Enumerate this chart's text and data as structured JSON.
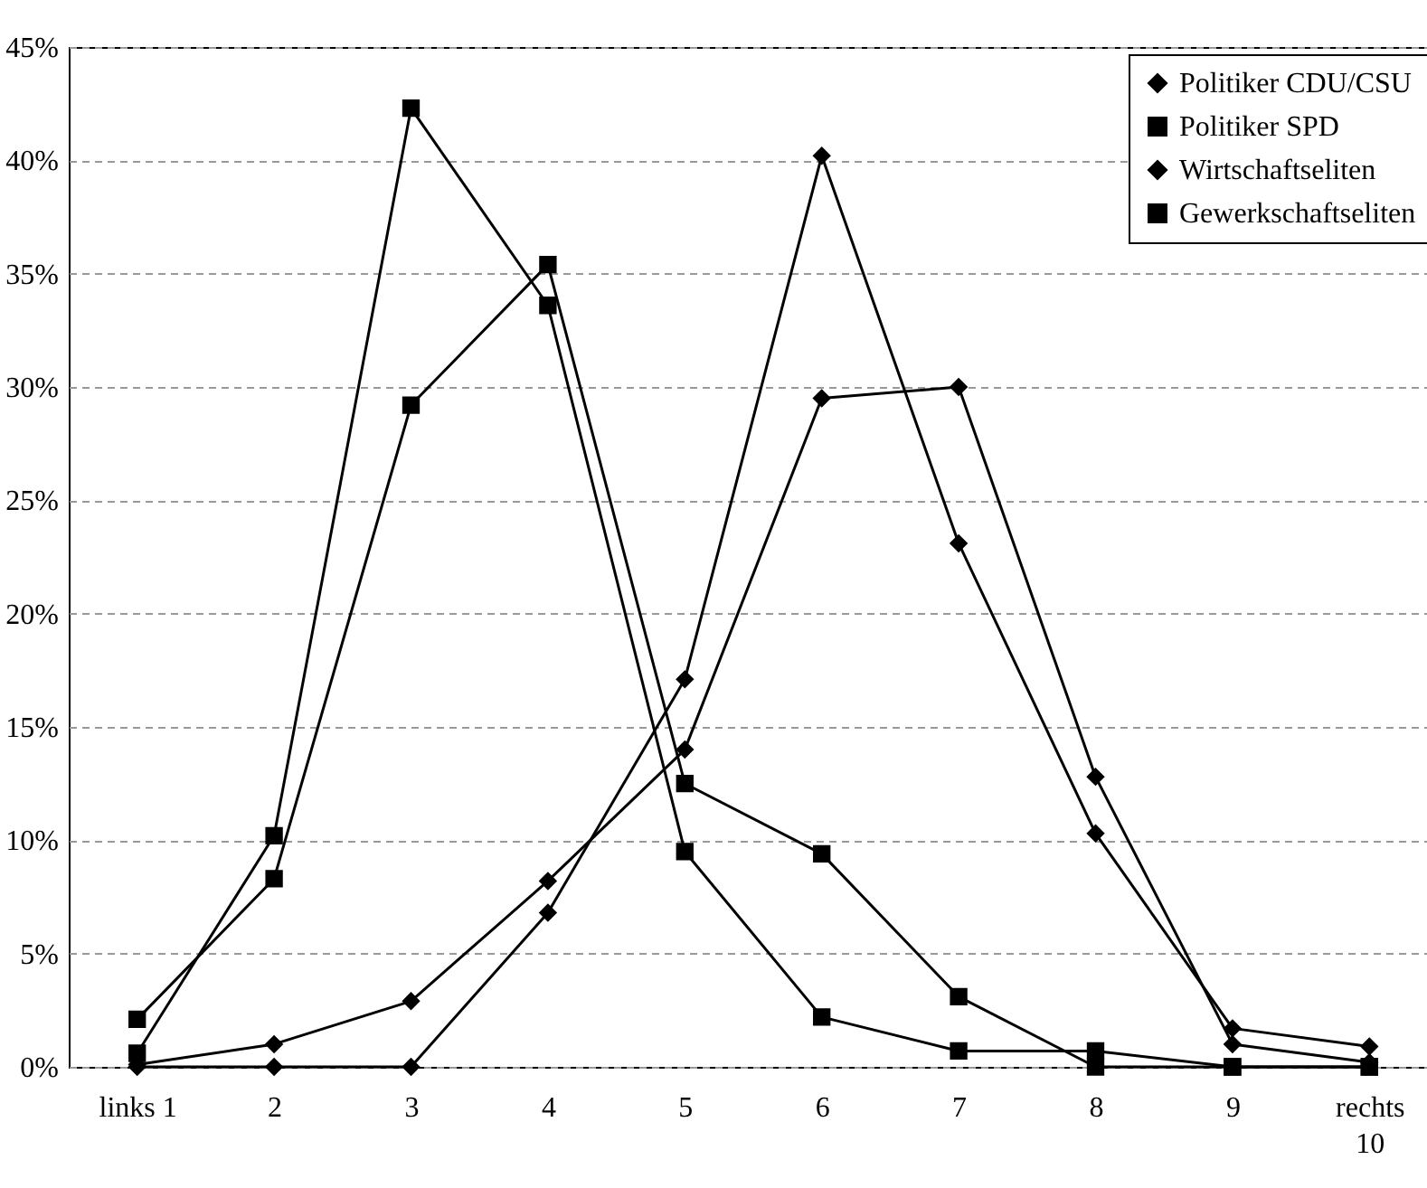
{
  "chart_data": {
    "type": "line",
    "categories": [
      "links 1",
      "2",
      "3",
      "4",
      "5",
      "6",
      "7",
      "8",
      "9",
      "rechts\n10"
    ],
    "ylim": [
      0,
      45
    ],
    "yticks": [
      {
        "value": 0,
        "label": "0%"
      },
      {
        "value": 5,
        "label": "5%"
      },
      {
        "value": 10,
        "label": "10%"
      },
      {
        "value": 15,
        "label": "15%"
      },
      {
        "value": 20,
        "label": "20%"
      },
      {
        "value": 25,
        "label": "25%"
      },
      {
        "value": 30,
        "label": "30%"
      },
      {
        "value": 35,
        "label": "35%"
      },
      {
        "value": 40,
        "label": "40%"
      },
      {
        "value": 45,
        "label": "45%"
      }
    ],
    "grid": "y",
    "legend": "top right",
    "line_style": "solid",
    "series": [
      {
        "name": "Politiker CDU/CSU",
        "color": "#000000",
        "marker": "diamond",
        "values": [
          0,
          0,
          0,
          6.8,
          17.1,
          40.2,
          23.1,
          10.3,
          1.7,
          0.9
        ]
      },
      {
        "name": "Politiker SPD",
        "color": "#000000",
        "marker": "square",
        "values": [
          0.6,
          10.2,
          42.3,
          33.6,
          9.5,
          2.2,
          0.7,
          0.7,
          0,
          0
        ]
      },
      {
        "name": "Wirtschaftseliten",
        "color": "#000000",
        "marker": "diamond",
        "values": [
          0.1,
          1.0,
          2.9,
          8.2,
          14.0,
          29.5,
          30.0,
          12.8,
          1.0,
          0.2
        ]
      },
      {
        "name": "Gewerkschaftseliten",
        "color": "#000000",
        "marker": "square",
        "values": [
          2.1,
          8.3,
          29.2,
          35.4,
          12.5,
          9.4,
          3.1,
          0,
          0,
          0
        ]
      }
    ]
  }
}
